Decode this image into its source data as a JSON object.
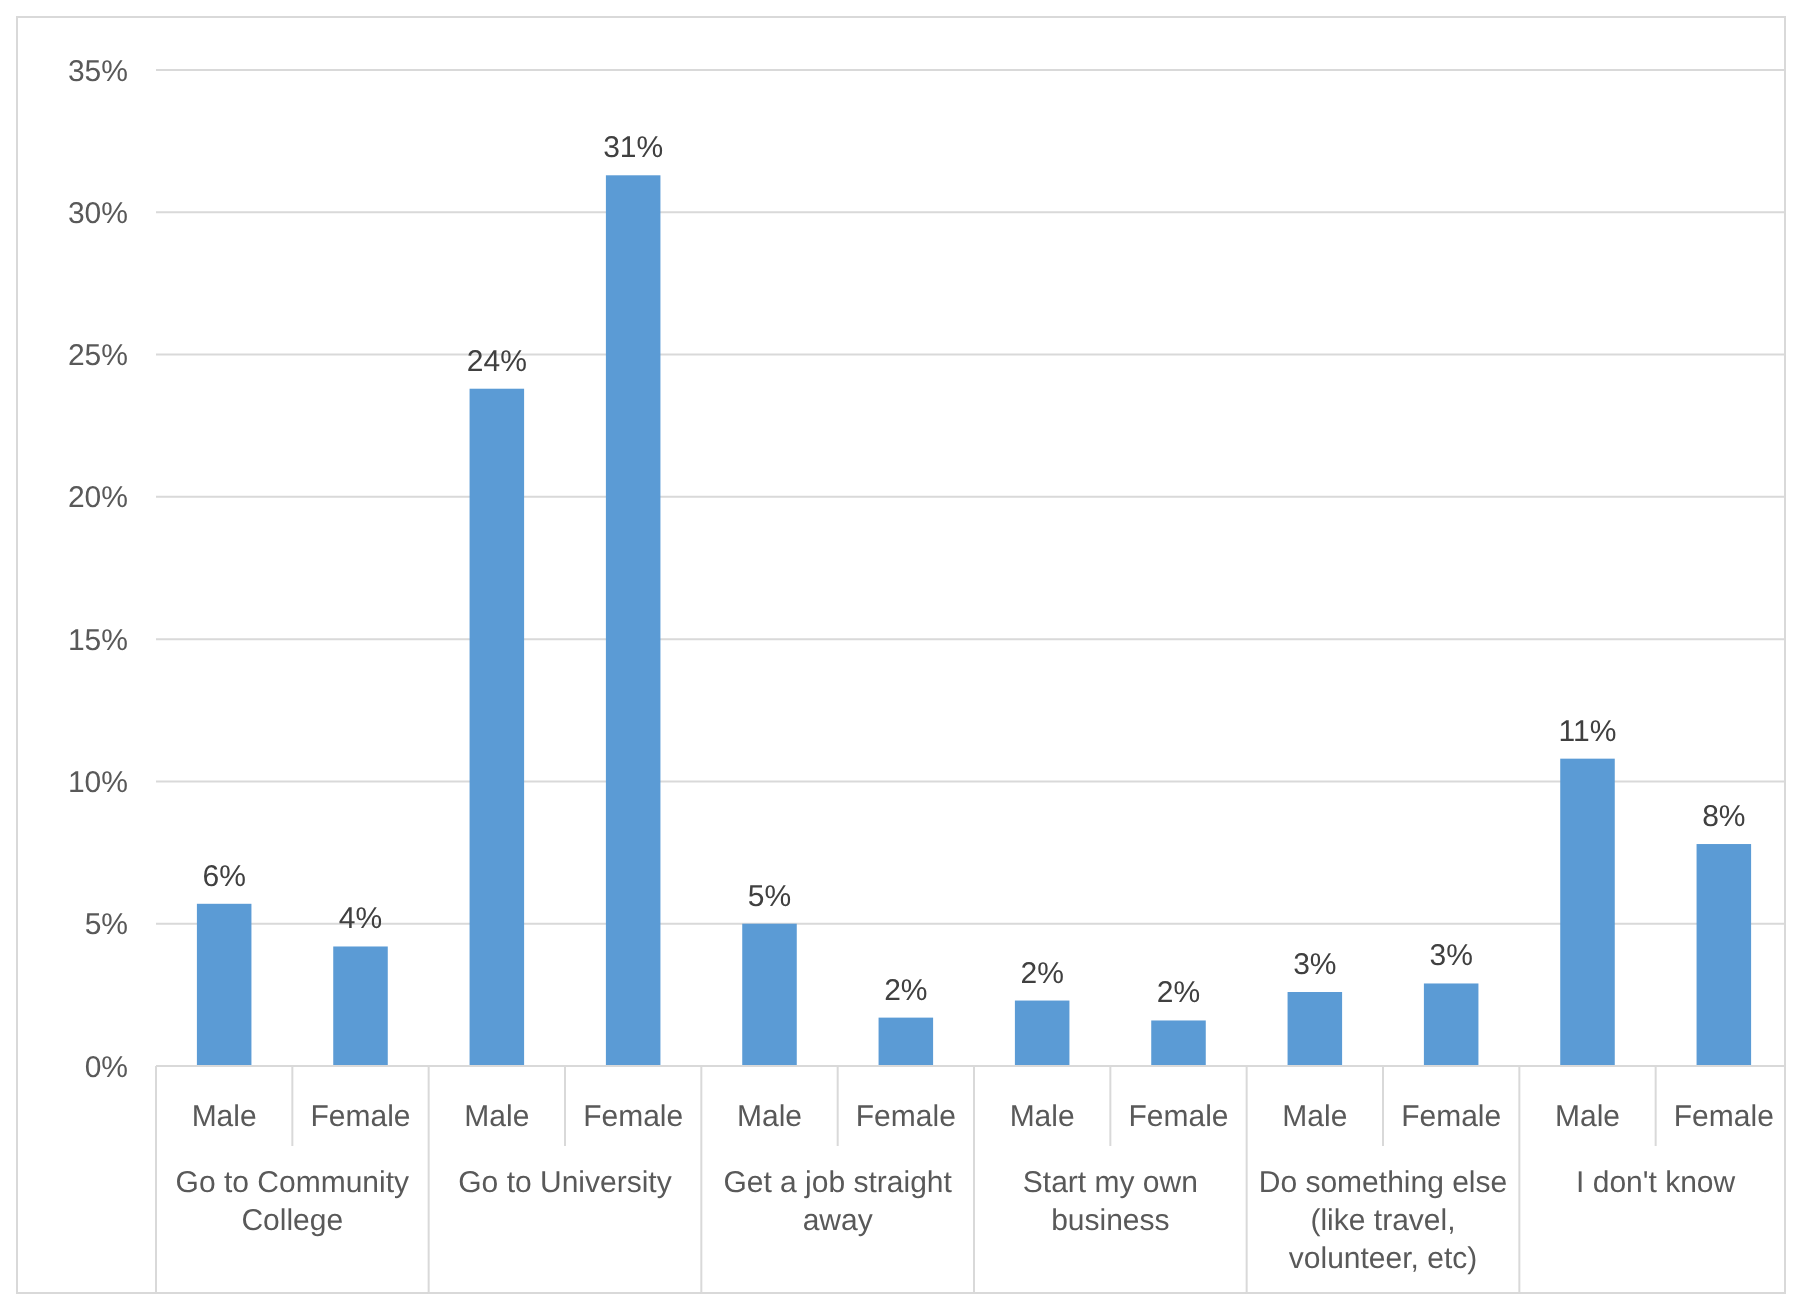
{
  "chart_data": {
    "type": "bar",
    "categories": [
      "Male",
      "Female",
      "Male",
      "Female",
      "Male",
      "Female",
      "Male",
      "Female",
      "Male",
      "Female",
      "Male",
      "Female"
    ],
    "values": [
      5.7,
      4.2,
      23.8,
      31.3,
      5.0,
      1.7,
      2.3,
      1.6,
      2.6,
      2.9,
      10.8,
      7.8
    ],
    "value_labels": [
      "6%",
      "4%",
      "24%",
      "31%",
      "5%",
      "2%",
      "2%",
      "2%",
      "3%",
      "3%",
      "11%",
      "8%"
    ],
    "color": "#5b9bd5",
    "ylim": [
      0,
      35
    ],
    "yticks": [
      {
        "value": 0,
        "label": "0%"
      },
      {
        "value": 5,
        "label": "5%"
      },
      {
        "value": 10,
        "label": "10%"
      },
      {
        "value": 15,
        "label": "15%"
      },
      {
        "value": 20,
        "label": "20%"
      },
      {
        "value": 25,
        "label": "25%"
      },
      {
        "value": 30,
        "label": "30%"
      },
      {
        "value": 35,
        "label": "35%"
      }
    ],
    "grid": "y",
    "annotations": [
      "Go to Community College",
      "Go to University",
      "Get a job straight away",
      "Start my own business",
      "Do something else (like travel, volunteer, etc)",
      "I don't know"
    ]
  }
}
